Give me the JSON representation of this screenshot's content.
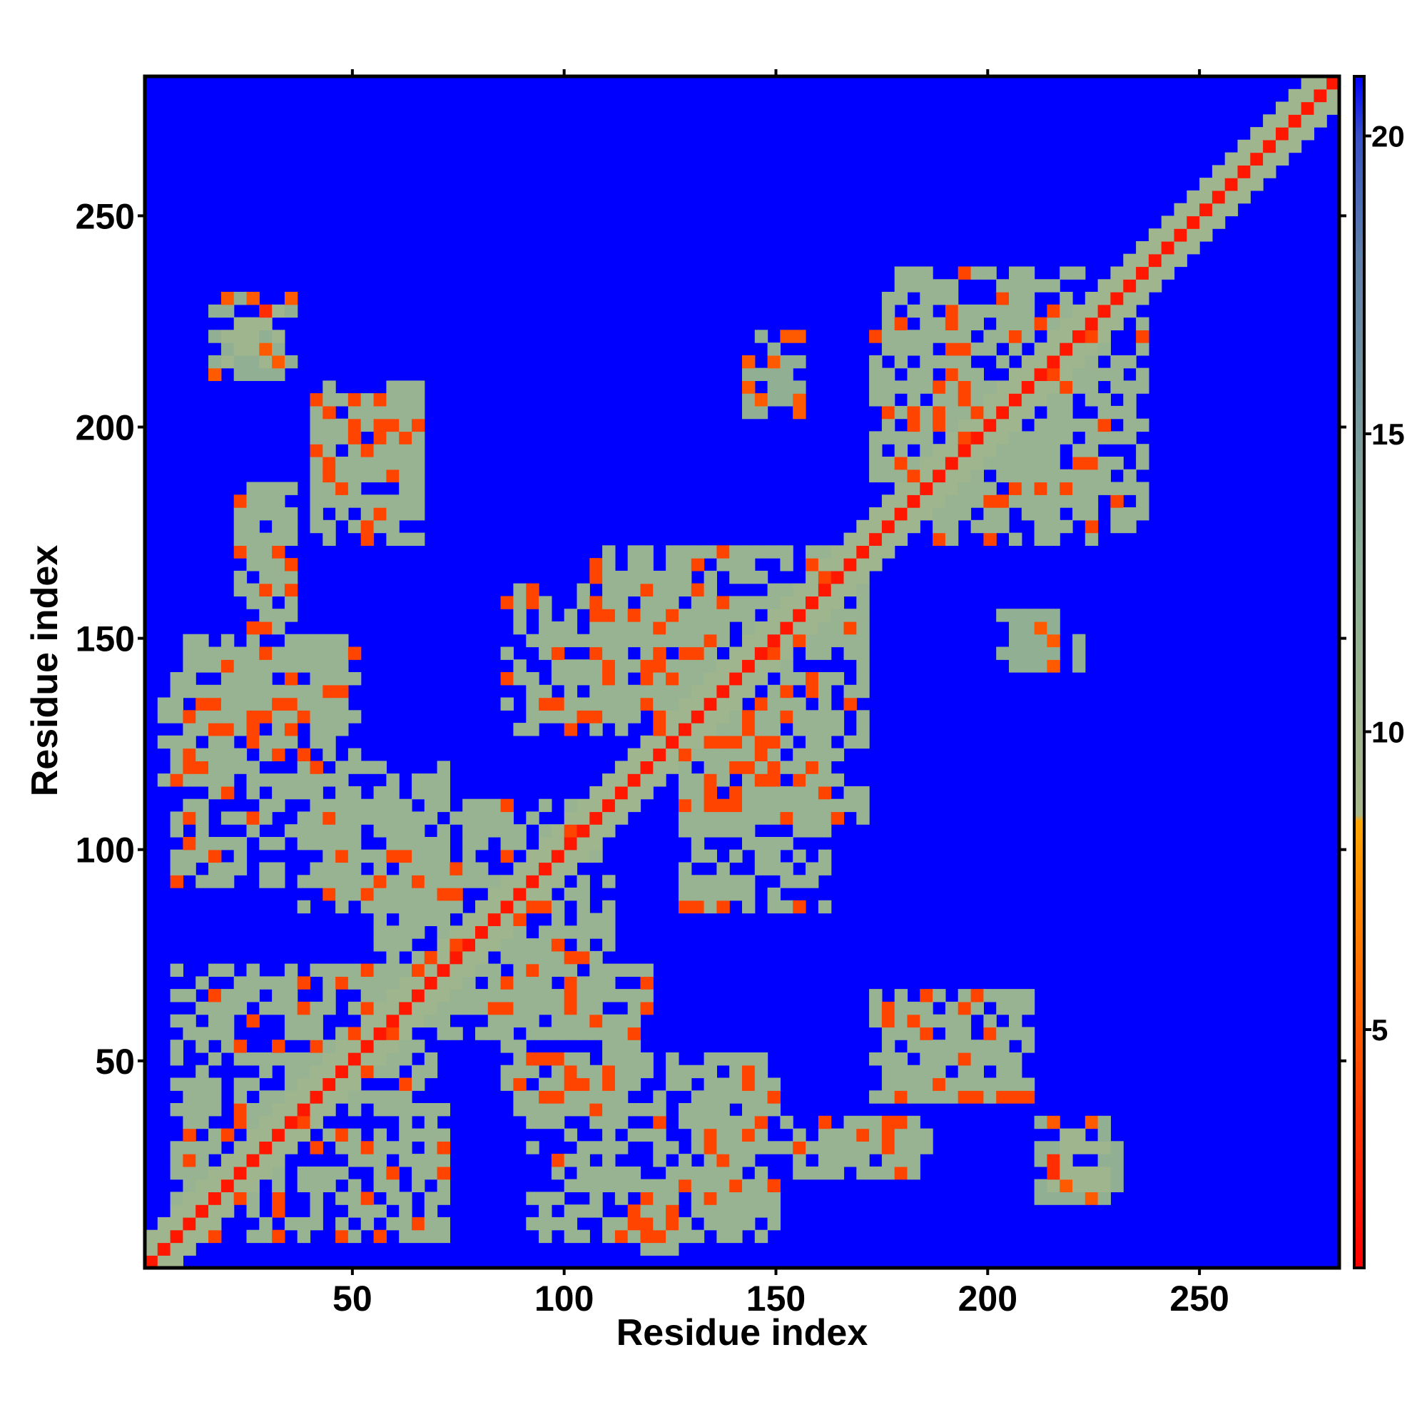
{
  "chart_data": {
    "type": "heatmap",
    "title": "",
    "xlabel": "Residue index",
    "ylabel": "Residue index",
    "xlim": [
      1,
      283
    ],
    "ylim": [
      1,
      283
    ],
    "x_ticks": [
      50,
      100,
      150,
      200,
      250
    ],
    "y_ticks": [
      50,
      100,
      150,
      200,
      250
    ],
    "colorbar": {
      "ticks": [
        5,
        10,
        15,
        20
      ],
      "range": [
        1,
        21
      ],
      "stops": [
        {
          "value": 1,
          "color": "#ff0000"
        },
        {
          "value": 5,
          "color": "#ff5a00"
        },
        {
          "value": 8.5,
          "color": "#ffa500"
        },
        {
          "value": 8.6,
          "color": "#a8b88a"
        },
        {
          "value": 13,
          "color": "#8aae96"
        },
        {
          "value": 18,
          "color": "#5f80a8"
        },
        {
          "value": 20,
          "color": "#3850c8"
        },
        {
          "value": 21,
          "color": "#0000ff"
        }
      ]
    },
    "background_value": 21,
    "description_regions": [
      {
        "x": [
          1,
          283
        ],
        "y": [
          1,
          283
        ],
        "value": 21
      },
      {
        "diagonal_band_width": 6,
        "value": 10
      },
      {
        "diagonal_core_width": 2,
        "value": 2
      },
      {
        "x": [
          17,
          33
        ],
        "y": [
          213,
          228
        ],
        "value": 10
      },
      {
        "x": [
          40,
          65
        ],
        "y": [
          173,
          205
        ],
        "value": 11
      },
      {
        "x": [
          20,
          35
        ],
        "y": [
          160,
          185
        ],
        "value": 11
      },
      {
        "x": [
          10,
          48
        ],
        "y": [
          130,
          150
        ],
        "value": 11
      },
      {
        "x": [
          3,
          20
        ],
        "y": [
          115,
          135
        ],
        "value": 11
      },
      {
        "x": [
          35,
          70
        ],
        "y": [
          85,
          120
        ],
        "value": 11
      },
      {
        "x": [
          55,
          110
        ],
        "y": [
          60,
          110
        ],
        "value": 11
      },
      {
        "x": [
          85,
          135
        ],
        "y": [
          125,
          160
        ],
        "value": 11
      },
      {
        "x": [
          125,
          170
        ],
        "y": [
          105,
          160
        ],
        "value": 11
      },
      {
        "x": [
          140,
          155
        ],
        "y": [
          200,
          215
        ],
        "value": 12
      },
      {
        "x": [
          170,
          195
        ],
        "y": [
          185,
          225
        ],
        "value": 11
      },
      {
        "x": [
          190,
          235
        ],
        "y": [
          175,
          225
        ],
        "value": 11
      },
      {
        "x": [
          200,
          220
        ],
        "y": [
          140,
          155
        ],
        "value": 12
      },
      {
        "x": [
          170,
          210
        ],
        "y": [
          40,
          65
        ],
        "value": 11
      },
      {
        "x": [
          150,
          180
        ],
        "y": [
          20,
          35
        ],
        "value": 11
      },
      {
        "x": [
          210,
          230
        ],
        "y": [
          15,
          35
        ],
        "value": 12
      },
      {
        "x": [
          90,
          145
        ],
        "y": [
          5,
          50
        ],
        "value": 11
      },
      {
        "x": [
          5,
          65
        ],
        "y": [
          15,
          70
        ],
        "value": 11
      }
    ]
  }
}
